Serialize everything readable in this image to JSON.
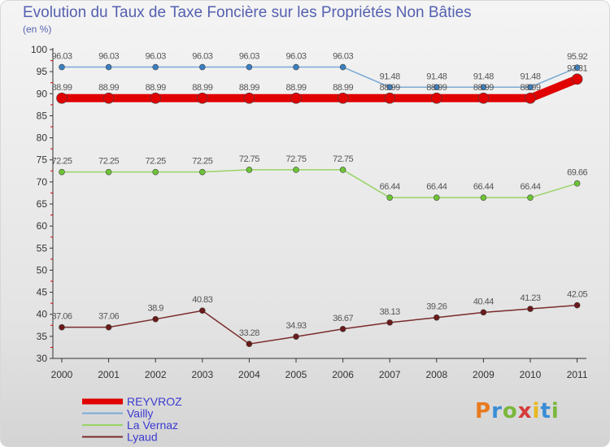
{
  "title": "Evolution du Taux de Taxe Foncière sur les Propriétés Non Bâties",
  "subtitle": "(en %)",
  "brand": "Proxiti",
  "chart_data": {
    "type": "line",
    "title": "Evolution du Taux de Taxe Foncière sur les Propriétés Non Bâties",
    "ylabel": "(en %)",
    "xlabel": "",
    "x": [
      "2000",
      "2001",
      "2002",
      "2003",
      "2004",
      "2005",
      "2006",
      "2007",
      "2008",
      "2009",
      "2010",
      "2011"
    ],
    "ylim": [
      30,
      100
    ],
    "yticks": [
      30,
      35,
      40,
      45,
      50,
      55,
      60,
      65,
      70,
      75,
      80,
      85,
      90,
      95,
      100
    ],
    "grid": false,
    "legend_position": "bottom-left",
    "series": [
      {
        "name": "REYVROZ",
        "color": "#e00000",
        "marker": "#e00000",
        "values": [
          88.99,
          88.99,
          88.99,
          88.99,
          88.99,
          88.99,
          88.99,
          88.99,
          88.99,
          88.99,
          88.99,
          93.31
        ],
        "labels": [
          "88.99",
          "88.99",
          "88.99",
          "88.99",
          "88.99",
          "88.99",
          "88.99",
          "88.99",
          "88.99",
          "88.99",
          "88.99",
          "93.31"
        ]
      },
      {
        "name": "Vailly",
        "color": "#7aaad6",
        "marker": "#3a7fc0",
        "values": [
          96.03,
          96.03,
          96.03,
          96.03,
          96.03,
          96.03,
          96.03,
          91.48,
          91.48,
          91.48,
          91.48,
          95.92
        ],
        "labels": [
          "96.03",
          "96.03",
          "96.03",
          "96.03",
          "96.03",
          "96.03",
          "96.03",
          "91.48",
          "91.48",
          "91.48",
          "91.48",
          "95.92"
        ]
      },
      {
        "name": "La Vernaz",
        "color": "#99d466",
        "marker": "#6cc436",
        "values": [
          72.25,
          72.25,
          72.25,
          72.25,
          72.75,
          72.75,
          72.75,
          66.44,
          66.44,
          66.44,
          66.44,
          69.66
        ],
        "labels": [
          "72.25",
          "72.25",
          "72.25",
          "72.25",
          "72.75",
          "72.75",
          "72.75",
          "66.44",
          "66.44",
          "66.44",
          "66.44",
          "69.66"
        ]
      },
      {
        "name": "Lyaud",
        "color": "#7a2a2a",
        "marker": "#6a1a1a",
        "values": [
          37.06,
          37.06,
          38.9,
          40.83,
          33.28,
          34.93,
          36.67,
          38.13,
          39.26,
          40.44,
          41.23,
          42.05
        ],
        "labels": [
          "37.06",
          "37.06",
          "38.9",
          "40.83",
          "33.28",
          "34.93",
          "36.67",
          "38.13",
          "39.26",
          "40.44",
          "41.23",
          "42.05"
        ]
      }
    ]
  }
}
